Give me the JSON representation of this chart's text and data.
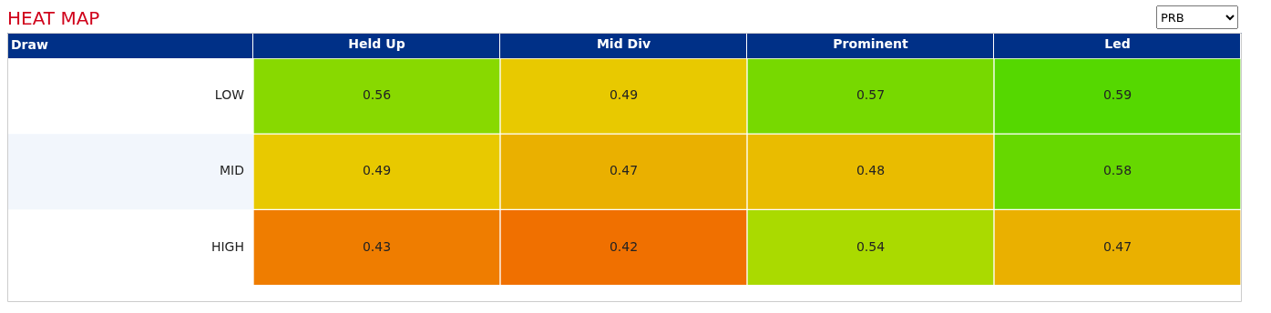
{
  "chart_data": {
    "type": "heatmap",
    "title": "HEAT MAP",
    "categories": [
      "Held Up",
      "Mid Div",
      "Prominent",
      "Led"
    ],
    "y_categories": [
      "LOW",
      "MID",
      "HIGH"
    ],
    "cells": [
      [
        0.56,
        0.49,
        0.57,
        0.59
      ],
      [
        0.49,
        0.47,
        0.48,
        0.58
      ],
      [
        0.43,
        0.42,
        0.54,
        0.47
      ]
    ],
    "cell_labels": [
      [
        "0.56",
        "0.49",
        "0.57",
        "0.59"
      ],
      [
        "0.49",
        "0.47",
        "0.48",
        "0.58"
      ],
      [
        "0.43",
        "0.42",
        "0.54",
        "0.47"
      ]
    ],
    "data_labels": true,
    "annotations": [
      "Draw",
      "PRB"
    ]
  }
}
